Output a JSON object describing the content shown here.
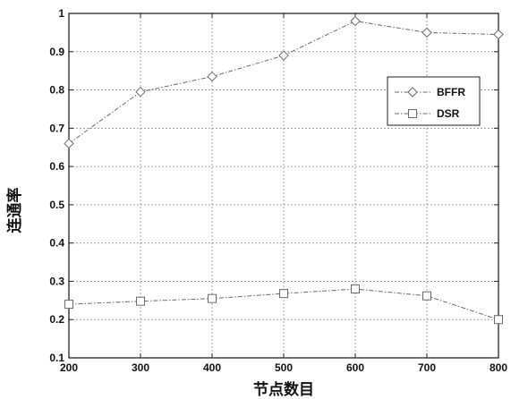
{
  "chart_data": {
    "type": "line",
    "title": "",
    "xlabel": "节点数目",
    "ylabel": "连通率",
    "x": [
      200,
      300,
      400,
      500,
      600,
      700,
      800
    ],
    "xlim": [
      200,
      800
    ],
    "ylim": [
      0.1,
      1
    ],
    "xticks": [
      "200",
      "300",
      "400",
      "500",
      "600",
      "700",
      "800"
    ],
    "yticks": [
      "0.1",
      "0.2",
      "0.3",
      "0.4",
      "0.5",
      "0.6",
      "0.7",
      "0.8",
      "0.9",
      "1"
    ],
    "grid": true,
    "legend_position": "right",
    "series": [
      {
        "name": "BFFR",
        "marker": "diamond",
        "color": "#6a6a6a",
        "values": [
          0.66,
          0.795,
          0.835,
          0.89,
          0.98,
          0.95,
          0.945
        ]
      },
      {
        "name": "DSR",
        "marker": "square",
        "color": "#6a6a6a",
        "values": [
          0.24,
          0.248,
          0.255,
          0.268,
          0.28,
          0.262,
          0.2
        ]
      }
    ]
  }
}
